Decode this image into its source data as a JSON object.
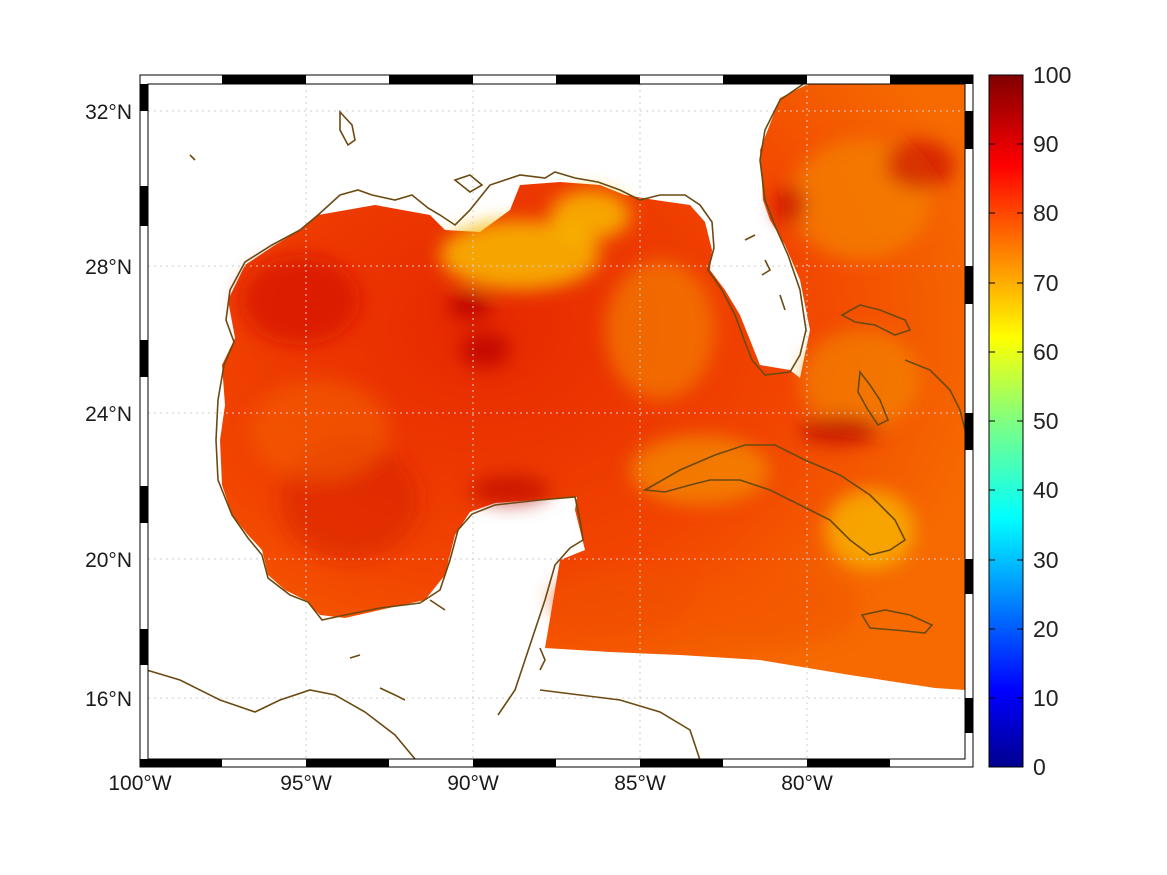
{
  "map": {
    "lon_labels": [
      "100°W",
      "95°W",
      "90°W",
      "85°W",
      "80°W"
    ],
    "lat_labels": [
      "32°N",
      "28°N",
      "24°N",
      "20°N",
      "16°N"
    ],
    "lon_range": [
      -100,
      -75
    ],
    "lat_range": [
      15,
      33
    ]
  },
  "colorbar": {
    "ticks": [
      "100",
      "90",
      "80",
      "70",
      "60",
      "50",
      "40",
      "30",
      "20",
      "10",
      "0"
    ],
    "range": [
      0,
      100
    ],
    "colormap": "jet"
  },
  "colors": {
    "coast": "#6b4a12",
    "grid": "#cfcfcf",
    "field_low": "#f7b500",
    "field_mid": "#f54a00",
    "field_high": "#c80000"
  }
}
